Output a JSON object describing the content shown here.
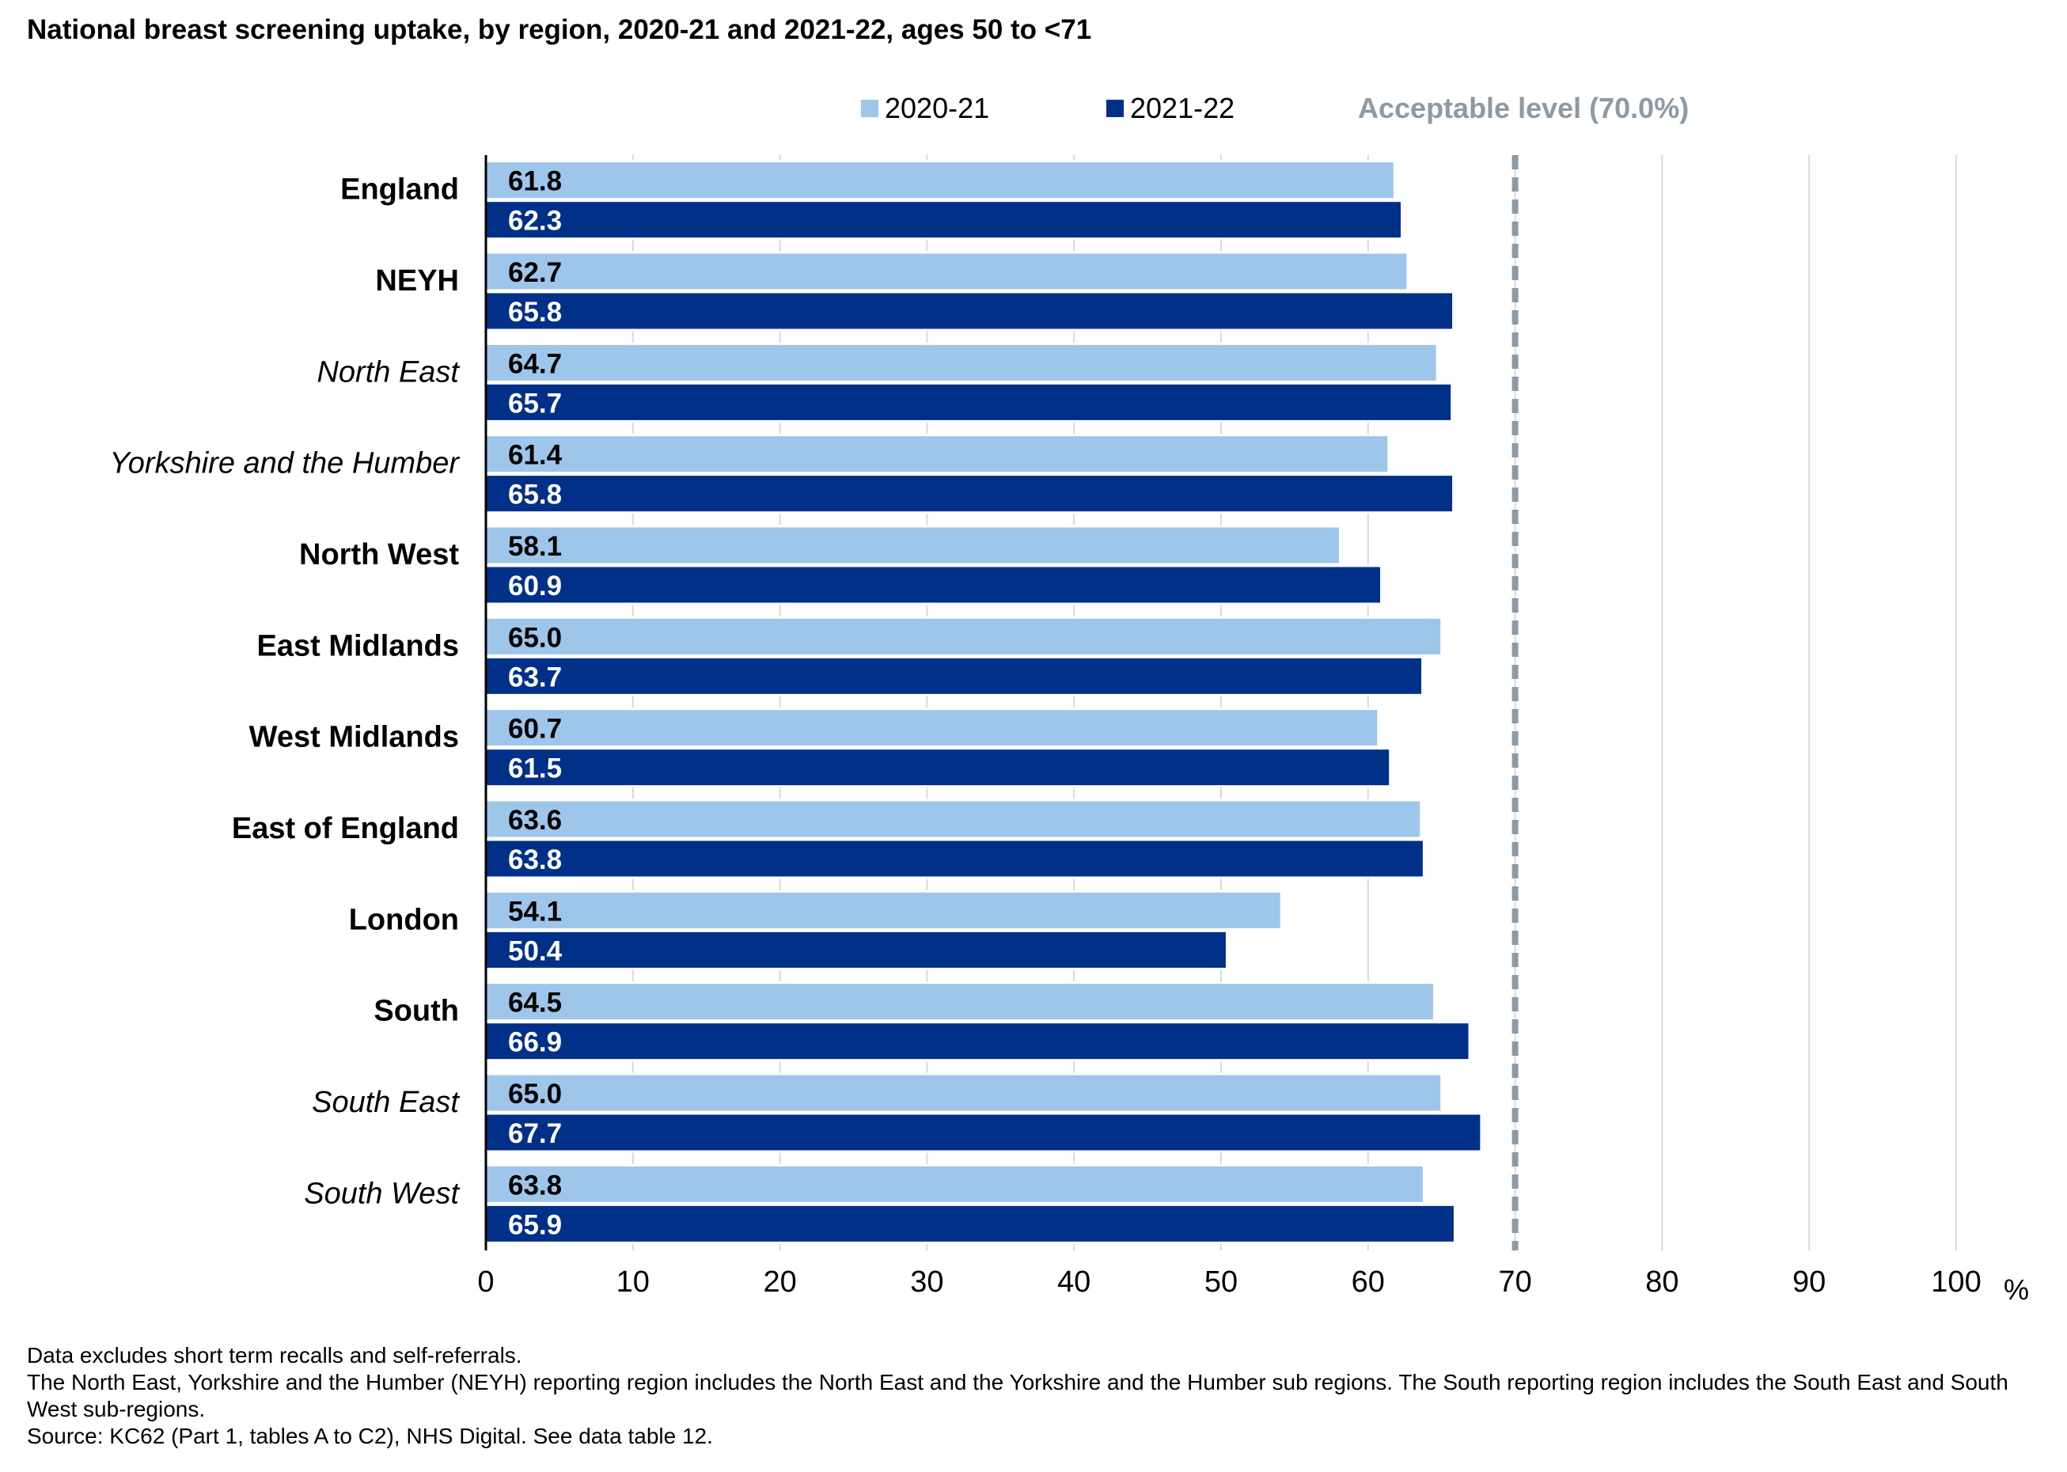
{
  "title": "National breast screening uptake, by region, 2020-21 and 2021-22, ages 50 to <71",
  "legend": {
    "series1": "2020-21",
    "series2": "2021-22",
    "reference": "Acceptable level (70.0%)"
  },
  "colors": {
    "series1": "#9dc6ea",
    "series2": "#003087",
    "reference": "#8c9aa6",
    "grid": "#d9d9d9"
  },
  "chart_data": {
    "type": "bar",
    "orientation": "horizontal",
    "title": "National breast screening uptake, by region, 2020-21 and 2021-22, ages 50 to <71",
    "categories": [
      {
        "label": "England",
        "style": "bold"
      },
      {
        "label": "NEYH",
        "style": "bold"
      },
      {
        "label": "North East",
        "style": "italic"
      },
      {
        "label": "Yorkshire and the Humber",
        "style": "italic"
      },
      {
        "label": "North West",
        "style": "bold"
      },
      {
        "label": "East Midlands",
        "style": "bold"
      },
      {
        "label": "West Midlands",
        "style": "bold"
      },
      {
        "label": "East of England",
        "style": "bold"
      },
      {
        "label": "London",
        "style": "bold"
      },
      {
        "label": "South",
        "style": "bold"
      },
      {
        "label": "South East",
        "style": "italic"
      },
      {
        "label": "South West",
        "style": "italic"
      }
    ],
    "series": [
      {
        "name": "2020-21",
        "values": [
          61.8,
          62.7,
          64.7,
          61.4,
          58.1,
          65.0,
          60.7,
          63.6,
          54.1,
          64.5,
          65.0,
          63.8
        ],
        "labels": [
          "61.8",
          "62.7",
          "64.7",
          "61.4",
          "58.1",
          "65.0",
          "60.7",
          "63.6",
          "54.1",
          "64.5",
          "65.0",
          "63.8"
        ]
      },
      {
        "name": "2021-22",
        "values": [
          62.3,
          65.8,
          65.7,
          65.8,
          60.9,
          63.7,
          61.5,
          63.8,
          50.4,
          66.9,
          67.7,
          65.9
        ],
        "labels": [
          "62.3",
          "65.8",
          "65.7",
          "65.8",
          "60.9",
          "63.7",
          "61.5",
          "63.8",
          "50.4",
          "66.9",
          "67.7",
          "65.9"
        ]
      }
    ],
    "reference_line": {
      "value": 70,
      "label": "Acceptable level (70.0%)",
      "style": "dashed"
    },
    "xlim": [
      0,
      100
    ],
    "xticks": [
      "0",
      "10",
      "20",
      "30",
      "40",
      "50",
      "60",
      "70",
      "80",
      "90",
      "100"
    ],
    "xunit": "%",
    "grid": true,
    "legend_position": "top"
  },
  "footnotes": [
    "Data excludes short term recalls and self-referrals.",
    "The North East, Yorkshire and the Humber (NEYH) reporting region includes the North East and the Yorkshire and the Humber sub regions. The South reporting region includes the South East and South West sub-regions.",
    "Source: KC62 (Part 1, tables A to C2), NHS Digital. See data table 12."
  ]
}
